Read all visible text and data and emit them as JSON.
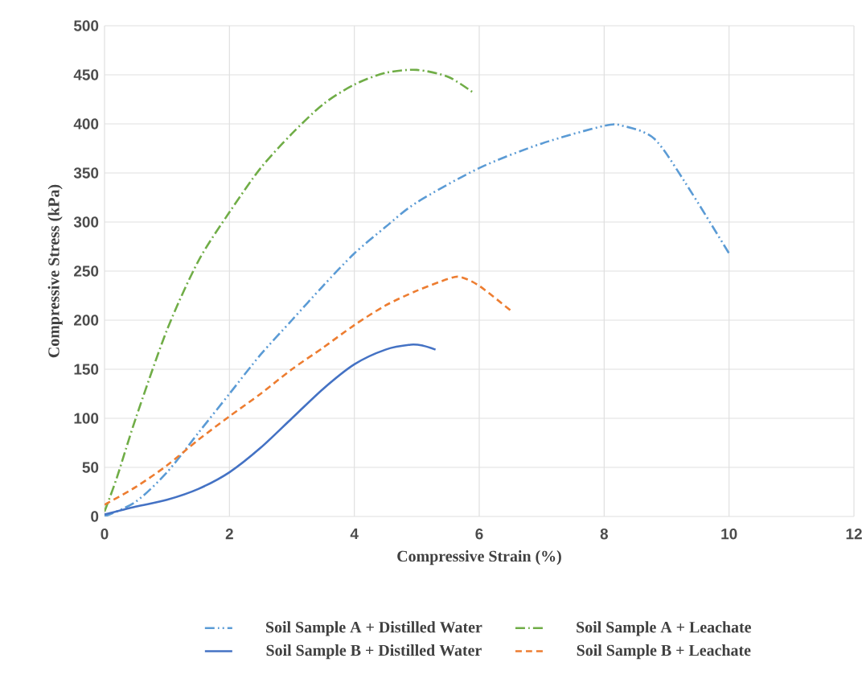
{
  "chart_data": {
    "type": "line",
    "xlabel": "Compressive Strain (%)",
    "ylabel": "Compressive Stress (kPa)",
    "xlim": [
      0,
      12
    ],
    "ylim": [
      0,
      500
    ],
    "xticks": [
      0,
      2,
      4,
      6,
      8,
      10,
      12
    ],
    "yticks": [
      0,
      50,
      100,
      150,
      200,
      250,
      300,
      350,
      400,
      450,
      500
    ],
    "grid": true,
    "legend": "bottom",
    "marker": "none",
    "series": [
      {
        "name": "Soil Sample A + Distilled Water",
        "color": "#5b9bd5",
        "line_style": "dashdotdot",
        "x": [
          0,
          0.5,
          1,
          1.5,
          2,
          2.5,
          3,
          3.5,
          4,
          4.5,
          5,
          6,
          7,
          8,
          8.3,
          8.8,
          9.3,
          10
        ],
        "values": [
          0,
          15,
          45,
          85,
          125,
          165,
          200,
          235,
          268,
          295,
          320,
          355,
          380,
          398,
          398,
          385,
          340,
          268
        ]
      },
      {
        "name": "Soil Sample A + Leachate",
        "color": "#70ad47",
        "line_style": "dashdot",
        "x": [
          0,
          0.2,
          0.5,
          1,
          1.5,
          2,
          2.5,
          3,
          3.5,
          4,
          4.5,
          5,
          5.5,
          5.9
        ],
        "values": [
          5,
          40,
          100,
          190,
          260,
          310,
          355,
          390,
          420,
          440,
          452,
          455,
          448,
          432
        ]
      },
      {
        "name": "Soil Sample B + Distilled Water",
        "color": "#4472c4",
        "line_style": "solid",
        "x": [
          0,
          0.5,
          1,
          1.5,
          2,
          2.5,
          3,
          3.5,
          4,
          4.5,
          4.9,
          5.1,
          5.3
        ],
        "values": [
          2,
          10,
          17,
          28,
          45,
          70,
          100,
          130,
          155,
          170,
          175,
          174,
          170
        ]
      },
      {
        "name": "Soil Sample B + Leachate",
        "color": "#ed7d31",
        "line_style": "dashed",
        "x": [
          0,
          0.5,
          1,
          1.5,
          2,
          2.5,
          3,
          3.5,
          4,
          4.5,
          5,
          5.5,
          5.7,
          6,
          6.5
        ],
        "values": [
          12,
          30,
          52,
          78,
          102,
          125,
          150,
          172,
          195,
          215,
          230,
          242,
          244,
          235,
          210
        ]
      }
    ]
  }
}
